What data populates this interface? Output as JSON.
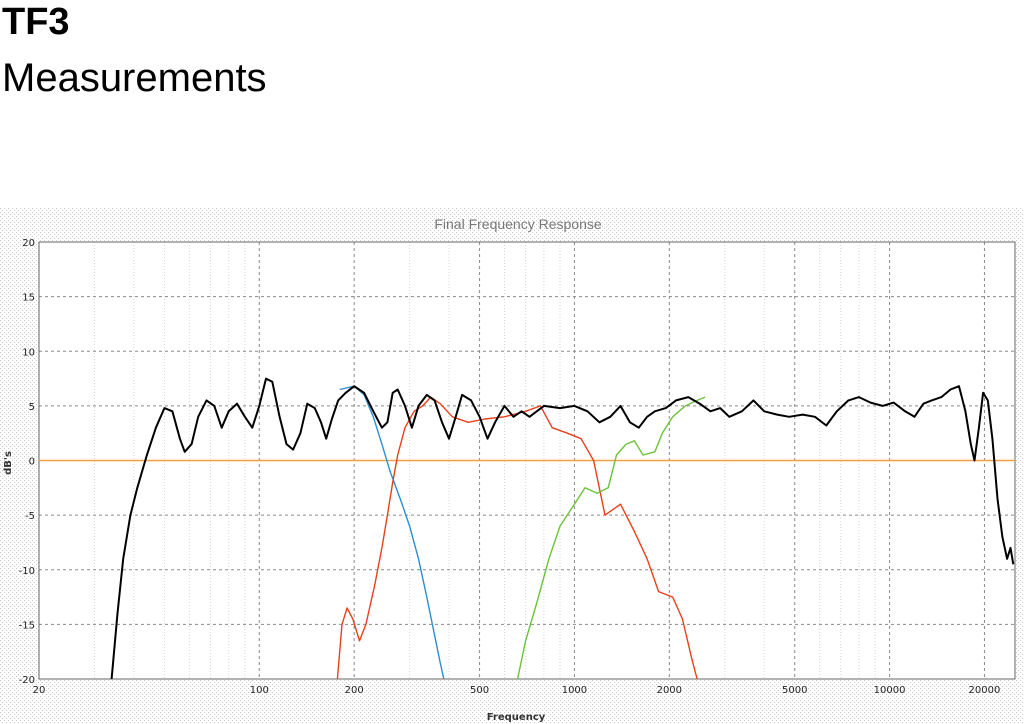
{
  "slide": {
    "title": "TF3",
    "subtitle": "Measurements"
  },
  "chart_data": {
    "type": "line",
    "title": "Final Frequency Response",
    "xlabel": "Frequency",
    "ylabel": "dB's",
    "x_scale": "log",
    "xlim": [
      20,
      25000
    ],
    "ylim": [
      -20,
      20
    ],
    "grid": true,
    "x_ticks": [
      20,
      100,
      200,
      500,
      1000,
      2000,
      5000,
      10000,
      20000
    ],
    "y_ticks": [
      20,
      15,
      10,
      5,
      0,
      -5,
      -10,
      -15,
      -20
    ],
    "series": [
      {
        "color": "#f4a040",
        "points": [
          [
            20,
            0
          ],
          [
            25000,
            0
          ]
        ]
      },
      {
        "color": "#2b8fd0",
        "points": [
          [
            180,
            6.5
          ],
          [
            200,
            6.8
          ],
          [
            215,
            6.0
          ],
          [
            230,
            4.0
          ],
          [
            245,
            1.5
          ],
          [
            260,
            -1.0
          ],
          [
            280,
            -3.5
          ],
          [
            300,
            -6.0
          ],
          [
            320,
            -9.0
          ],
          [
            340,
            -12.5
          ],
          [
            360,
            -16.0
          ],
          [
            375,
            -18.5
          ],
          [
            385,
            -20.0
          ]
        ]
      },
      {
        "color": "#e8401c",
        "points": [
          [
            177,
            -20.0
          ],
          [
            183,
            -15.0
          ],
          [
            190,
            -13.5
          ],
          [
            198,
            -14.5
          ],
          [
            208,
            -16.5
          ],
          [
            218,
            -15.0
          ],
          [
            232,
            -11.5
          ],
          [
            245,
            -8.0
          ],
          [
            255,
            -5.0
          ],
          [
            265,
            -2.0
          ],
          [
            275,
            0.5
          ],
          [
            290,
            3.0
          ],
          [
            310,
            4.5
          ],
          [
            330,
            5.0
          ],
          [
            350,
            5.8
          ],
          [
            375,
            5.2
          ],
          [
            410,
            4.0
          ],
          [
            460,
            3.5
          ],
          [
            520,
            3.8
          ],
          [
            600,
            4.0
          ],
          [
            700,
            4.5
          ],
          [
            780,
            5.0
          ],
          [
            850,
            3.0
          ],
          [
            950,
            2.5
          ],
          [
            1050,
            2.0
          ],
          [
            1150,
            0.0
          ],
          [
            1250,
            -5.0
          ],
          [
            1400,
            -4.0
          ],
          [
            1550,
            -6.5
          ],
          [
            1700,
            -9.0
          ],
          [
            1850,
            -12.0
          ],
          [
            2050,
            -12.5
          ],
          [
            2200,
            -14.5
          ],
          [
            2350,
            -18.0
          ],
          [
            2450,
            -20.0
          ]
        ]
      },
      {
        "color": "#6cc23a",
        "points": [
          [
            660,
            -20.0
          ],
          [
            700,
            -16.5
          ],
          [
            760,
            -13.0
          ],
          [
            830,
            -9.0
          ],
          [
            900,
            -6.0
          ],
          [
            1000,
            -4.0
          ],
          [
            1080,
            -2.5
          ],
          [
            1180,
            -3.0
          ],
          [
            1280,
            -2.5
          ],
          [
            1360,
            0.5
          ],
          [
            1460,
            1.5
          ],
          [
            1550,
            1.8
          ],
          [
            1650,
            0.5
          ],
          [
            1800,
            0.8
          ],
          [
            1900,
            2.5
          ],
          [
            2050,
            4.0
          ],
          [
            2250,
            5.0
          ],
          [
            2450,
            5.5
          ],
          [
            2600,
            5.8
          ]
        ]
      },
      {
        "color": "#000000",
        "points": [
          [
            34,
            -20.0
          ],
          [
            35.5,
            -14.0
          ],
          [
            37,
            -9.0
          ],
          [
            39,
            -5.0
          ],
          [
            41,
            -2.5
          ],
          [
            44,
            0.5
          ],
          [
            47,
            3.0
          ],
          [
            50,
            4.8
          ],
          [
            53,
            4.5
          ],
          [
            56,
            2.0
          ],
          [
            58,
            0.8
          ],
          [
            61,
            1.5
          ],
          [
            64,
            4.0
          ],
          [
            68,
            5.5
          ],
          [
            72,
            5.0
          ],
          [
            76,
            3.0
          ],
          [
            80,
            4.5
          ],
          [
            85,
            5.2
          ],
          [
            90,
            4.0
          ],
          [
            95,
            3.0
          ],
          [
            100,
            5.0
          ],
          [
            105,
            7.5
          ],
          [
            110,
            7.2
          ],
          [
            116,
            4.0
          ],
          [
            122,
            1.5
          ],
          [
            128,
            1.0
          ],
          [
            135,
            2.5
          ],
          [
            142,
            5.2
          ],
          [
            150,
            4.8
          ],
          [
            157,
            3.5
          ],
          [
            163,
            2.0
          ],
          [
            170,
            3.8
          ],
          [
            178,
            5.5
          ],
          [
            188,
            6.2
          ],
          [
            200,
            6.8
          ],
          [
            215,
            6.2
          ],
          [
            230,
            4.5
          ],
          [
            245,
            3.0
          ],
          [
            255,
            3.5
          ],
          [
            265,
            6.2
          ],
          [
            275,
            6.5
          ],
          [
            290,
            5.0
          ],
          [
            305,
            3.0
          ],
          [
            320,
            5.0
          ],
          [
            340,
            6.0
          ],
          [
            360,
            5.5
          ],
          [
            380,
            3.5
          ],
          [
            400,
            2.0
          ],
          [
            420,
            4.0
          ],
          [
            440,
            6.0
          ],
          [
            470,
            5.5
          ],
          [
            500,
            4.0
          ],
          [
            530,
            2.0
          ],
          [
            560,
            3.5
          ],
          [
            600,
            5.0
          ],
          [
            640,
            4.0
          ],
          [
            680,
            4.5
          ],
          [
            720,
            4.0
          ],
          [
            800,
            5.0
          ],
          [
            900,
            4.8
          ],
          [
            1000,
            5.0
          ],
          [
            1100,
            4.5
          ],
          [
            1200,
            3.5
          ],
          [
            1300,
            4.0
          ],
          [
            1400,
            5.0
          ],
          [
            1500,
            3.5
          ],
          [
            1600,
            3.0
          ],
          [
            1700,
            4.0
          ],
          [
            1800,
            4.5
          ],
          [
            1950,
            4.8
          ],
          [
            2100,
            5.5
          ],
          [
            2300,
            5.8
          ],
          [
            2500,
            5.2
          ],
          [
            2700,
            4.5
          ],
          [
            2900,
            4.8
          ],
          [
            3100,
            4.0
          ],
          [
            3400,
            4.5
          ],
          [
            3700,
            5.5
          ],
          [
            4000,
            4.5
          ],
          [
            4400,
            4.2
          ],
          [
            4800,
            4.0
          ],
          [
            5300,
            4.2
          ],
          [
            5800,
            4.0
          ],
          [
            6300,
            3.2
          ],
          [
            6800,
            4.5
          ],
          [
            7400,
            5.5
          ],
          [
            8000,
            5.8
          ],
          [
            8700,
            5.3
          ],
          [
            9500,
            5.0
          ],
          [
            10300,
            5.3
          ],
          [
            11200,
            4.5
          ],
          [
            12000,
            4.0
          ],
          [
            12800,
            5.2
          ],
          [
            13600,
            5.5
          ],
          [
            14600,
            5.8
          ],
          [
            15600,
            6.5
          ],
          [
            16600,
            6.8
          ],
          [
            17400,
            4.5
          ],
          [
            18100,
            1.5
          ],
          [
            18600,
            0.0
          ],
          [
            19200,
            3.0
          ],
          [
            19800,
            6.2
          ],
          [
            20500,
            5.5
          ],
          [
            21200,
            2.0
          ],
          [
            22000,
            -3.5
          ],
          [
            22800,
            -7.0
          ],
          [
            23600,
            -9.0
          ],
          [
            24200,
            -8.0
          ],
          [
            24700,
            -9.5
          ]
        ]
      }
    ]
  }
}
